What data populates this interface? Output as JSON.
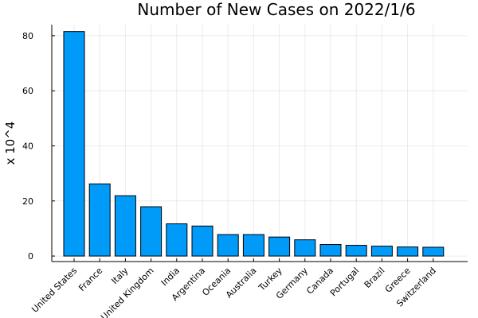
{
  "chart_data": {
    "type": "bar",
    "title": "Number of New Cases on 2022/1/6",
    "xlabel": "",
    "ylabel": "x 10^4",
    "categories": [
      "United States",
      "France",
      "Italy",
      "United Kingdom",
      "India",
      "Argentina",
      "Oceania",
      "Australia",
      "Turkey",
      "Germany",
      "Canada",
      "Portugal",
      "Brazil",
      "Greece",
      "Switzerland"
    ],
    "values": [
      81.5,
      26.2,
      21.9,
      17.9,
      11.7,
      10.9,
      7.8,
      7.8,
      6.9,
      5.9,
      4.2,
      3.9,
      3.6,
      3.3,
      3.2
    ],
    "ylim": [
      -2,
      84
    ],
    "yticks": [
      0,
      20,
      40,
      60,
      80
    ],
    "grid": true,
    "legend": "none",
    "colors": {
      "bar": "#009af9"
    }
  }
}
